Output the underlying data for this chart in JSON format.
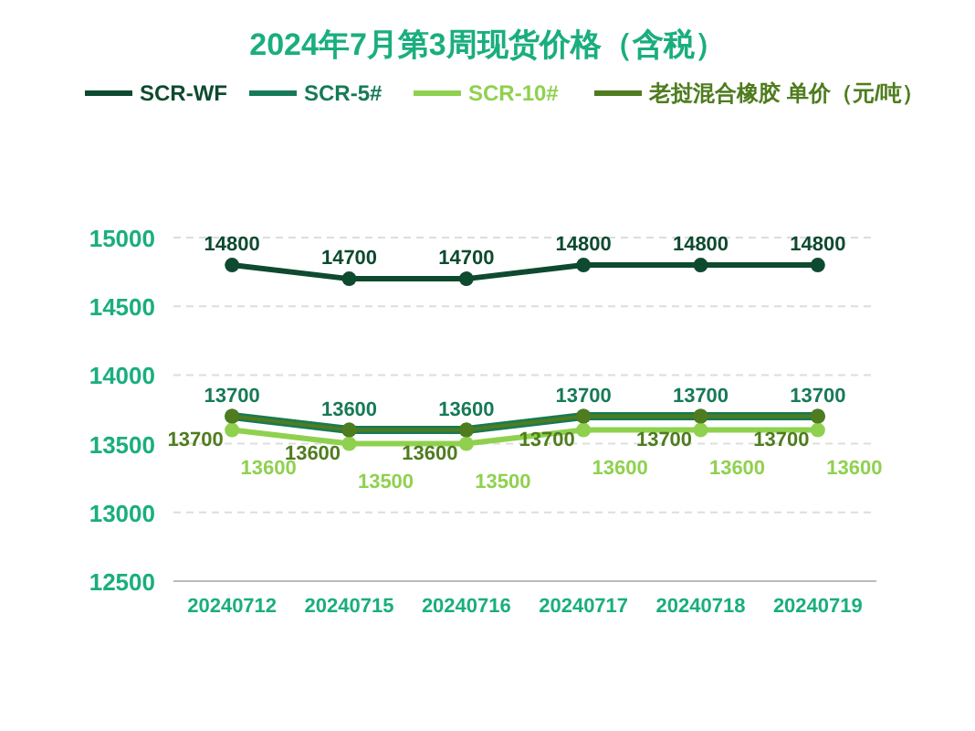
{
  "chart_data": {
    "type": "line",
    "title": "2024年7月第3周现货价格（含税）",
    "categories": [
      "20240712",
      "20240715",
      "20240716",
      "20240717",
      "20240718",
      "20240719"
    ],
    "series": [
      {
        "name": "SCR-WF",
        "color": "#0e4a2f",
        "values": [
          14800,
          14700,
          14700,
          14800,
          14800,
          14800
        ]
      },
      {
        "name": "SCR-5#",
        "color": "#177a56",
        "values": [
          13700,
          13600,
          13600,
          13700,
          13700,
          13700
        ]
      },
      {
        "name": "SCR-10#",
        "color": "#8fd14f",
        "values": [
          13600,
          13500,
          13500,
          13600,
          13600,
          13600
        ]
      },
      {
        "name": "老挝混合橡胶 单价（元/吨）",
        "color": "#4f7c1f",
        "values": [
          13700,
          13600,
          13600,
          13700,
          13700,
          13700
        ]
      }
    ],
    "ylim": [
      12500,
      15000
    ],
    "yticks": [
      12500,
      13000,
      13500,
      14000,
      14500,
      15000
    ],
    "grid": "y",
    "legend": "top",
    "marker": "circle",
    "line_style": "solid",
    "data_labels": true
  }
}
